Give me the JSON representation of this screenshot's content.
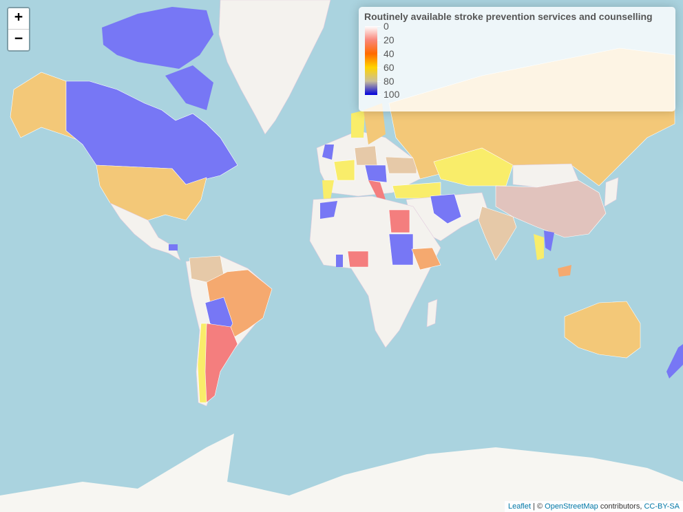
{
  "zoom": {
    "in_label": "+",
    "out_label": "−"
  },
  "legend": {
    "title": "Routinely available stroke prevention services and counselling",
    "ticks": [
      "0",
      "20",
      "40",
      "60",
      "80",
      "100"
    ]
  },
  "attribution": {
    "leaflet": "Leaflet",
    "separator": " | © ",
    "osm": "OpenStreetMap",
    "contributors": " contributors, ",
    "license": "CC-BY-SA"
  },
  "colors": {
    "ocean": "#aad3df",
    "land": "#f4f2ee",
    "ice": "#f7f6f2",
    "blue": "#7777f5",
    "light_orange": "#f3c878",
    "orange": "#f5a96f",
    "salmon": "#f47e7e",
    "yellow": "#f9ed6a",
    "tan": "#e6c9a8",
    "mauve": "#e1c3bd"
  },
  "country_values": {
    "canada": "blue",
    "usa": "light_orange",
    "alaska": "light_orange",
    "russia": "light_orange",
    "china": "mauve",
    "india": "tan",
    "kazakhstan": "yellow",
    "australia": "light_orange",
    "brazil": "orange",
    "argentina": "salmon",
    "chile": "yellow",
    "bolivia": "blue",
    "colombia": "tan",
    "egypt": "salmon",
    "sudan": "blue",
    "ethiopia": "orange",
    "nigeria": "salmon",
    "iran": "blue",
    "morocco": "blue",
    "turkey": "yellow",
    "france": "yellow",
    "germany": "light_orange",
    "sweden": "light_orange",
    "norway": "yellow",
    "vietnam": "blue",
    "thailand": "yellow",
    "new_zealand": "blue",
    "mongolia": "white",
    "greenland": "white"
  }
}
